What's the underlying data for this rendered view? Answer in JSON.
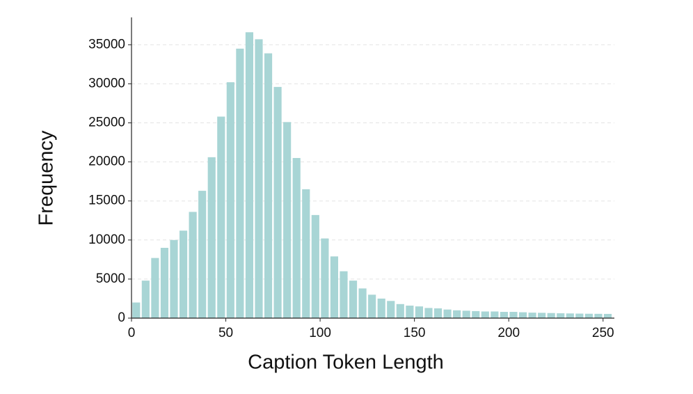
{
  "chart_data": {
    "type": "histogram",
    "x_label": "Caption Token Length",
    "y_label": "Frequency",
    "bins": [
      0,
      5,
      10,
      15,
      20,
      25,
      30,
      35,
      40,
      45,
      50,
      55,
      60,
      65,
      70,
      75,
      80,
      85,
      90,
      95,
      100,
      105,
      110,
      115,
      120,
      125,
      130,
      135,
      140,
      145,
      150,
      155,
      160,
      165,
      170,
      175,
      180,
      185,
      190,
      195,
      200,
      205,
      210,
      215,
      220,
      225,
      230,
      235,
      240,
      245,
      250,
      255
    ],
    "values": [
      2000,
      4800,
      7700,
      9000,
      10000,
      11200,
      13600,
      16300,
      20600,
      25800,
      30200,
      34500,
      36600,
      35700,
      33900,
      29600,
      25100,
      20500,
      16500,
      13200,
      10200,
      7900,
      6000,
      4800,
      3800,
      3000,
      2500,
      2200,
      1800,
      1600,
      1500,
      1300,
      1250,
      1100,
      1000,
      950,
      900,
      850,
      850,
      800,
      800,
      750,
      700,
      680,
      650,
      620,
      600,
      580,
      560,
      550,
      540
    ],
    "color": "#a8d5d5",
    "xlim": [
      0,
      256
    ],
    "xticks": [
      0,
      50,
      100,
      150,
      200,
      250
    ],
    "ylim": [
      0,
      38500
    ],
    "yticks": [
      0,
      5000,
      10000,
      15000,
      20000,
      25000,
      30000,
      35000
    ],
    "grid": true
  }
}
